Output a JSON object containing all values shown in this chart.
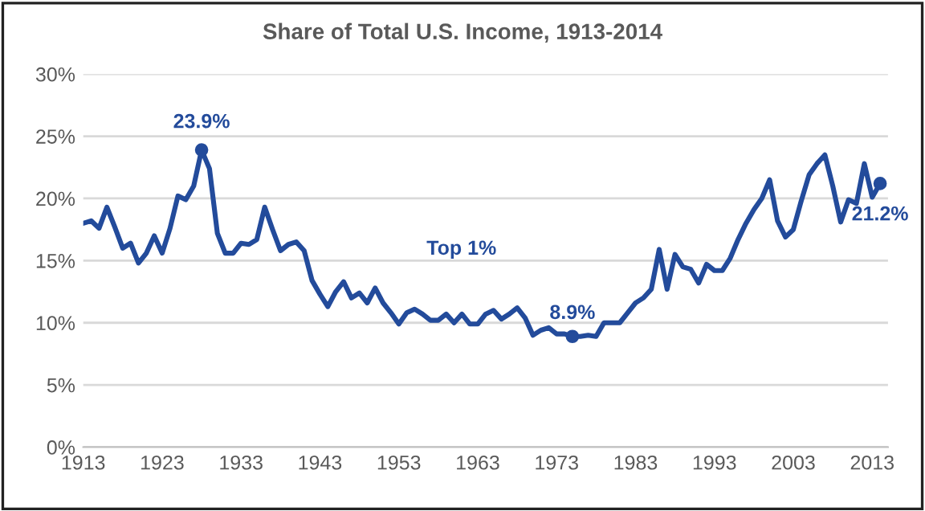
{
  "chart_data": {
    "type": "line",
    "title": "Share of Total U.S. Income, 1913-2014",
    "x": [
      1913,
      1914,
      1915,
      1916,
      1917,
      1918,
      1919,
      1920,
      1921,
      1922,
      1923,
      1924,
      1925,
      1926,
      1927,
      1928,
      1929,
      1930,
      1931,
      1932,
      1933,
      1934,
      1935,
      1936,
      1937,
      1938,
      1939,
      1940,
      1941,
      1942,
      1943,
      1944,
      1945,
      1946,
      1947,
      1948,
      1949,
      1950,
      1951,
      1952,
      1953,
      1954,
      1955,
      1956,
      1957,
      1958,
      1959,
      1960,
      1961,
      1962,
      1963,
      1964,
      1965,
      1966,
      1967,
      1968,
      1969,
      1970,
      1971,
      1972,
      1973,
      1974,
      1975,
      1976,
      1977,
      1978,
      1979,
      1980,
      1981,
      1982,
      1983,
      1984,
      1985,
      1986,
      1987,
      1988,
      1989,
      1990,
      1991,
      1992,
      1993,
      1994,
      1995,
      1996,
      1997,
      1998,
      1999,
      2000,
      2001,
      2002,
      2003,
      2004,
      2005,
      2006,
      2007,
      2008,
      2009,
      2010,
      2011,
      2012,
      2013,
      2014
    ],
    "series": [
      {
        "color": "#234b9b",
        "values": [
          18.0,
          18.2,
          17.6,
          19.3,
          17.7,
          16.0,
          16.4,
          14.8,
          15.6,
          17.0,
          15.6,
          17.6,
          20.2,
          19.9,
          21.0,
          23.9,
          22.4,
          17.2,
          15.6,
          15.6,
          16.4,
          16.3,
          16.7,
          19.3,
          17.5,
          15.8,
          16.3,
          16.5,
          15.8,
          13.4,
          12.3,
          11.3,
          12.5,
          13.3,
          12.0,
          12.4,
          11.6,
          12.8,
          11.6,
          10.8,
          9.9,
          10.8,
          11.1,
          10.7,
          10.2,
          10.2,
          10.7,
          10.0,
          10.7,
          9.9,
          9.9,
          10.7,
          11.0,
          10.3,
          10.7,
          11.2,
          10.4,
          9.0,
          9.4,
          9.6,
          9.1,
          9.1,
          8.9,
          8.9,
          9.0,
          8.9,
          10.0,
          10.0,
          10.0,
          10.8,
          11.6,
          12.0,
          12.7,
          15.9,
          12.7,
          15.5,
          14.5,
          14.3,
          13.2,
          14.7,
          14.2,
          14.2,
          15.2,
          16.7,
          18.0,
          19.1,
          20.0,
          21.5,
          18.2,
          16.9,
          17.5,
          19.8,
          21.9,
          22.8,
          23.5,
          21.0,
          18.1,
          19.9,
          19.6,
          22.8,
          20.1,
          21.2
        ]
      }
    ],
    "annotations": [
      {
        "text": "23.9%",
        "x": 1928,
        "y": 23.9
      },
      {
        "text": "8.9%",
        "x": 1975,
        "y": 8.9
      },
      {
        "text": "21.2%",
        "x": 2014,
        "y": 21.2
      },
      "Top 1%"
    ],
    "xlim": [
      1913,
      2015
    ],
    "xticks": [
      1913,
      1923,
      1933,
      1943,
      1953,
      1963,
      1973,
      1983,
      1993,
      2003,
      2013
    ],
    "ylim": [
      0,
      30
    ],
    "yticks": [
      {
        "value": 0,
        "label": "0%"
      },
      {
        "value": 5,
        "label": "5%"
      },
      {
        "value": 10,
        "label": "10%"
      },
      {
        "value": 15,
        "label": "15%"
      },
      {
        "value": 20,
        "label": "20%"
      },
      {
        "value": 25,
        "label": "25%"
      },
      {
        "value": 30,
        "label": "30%"
      }
    ],
    "grid": "y",
    "legend": false,
    "line_style": "solid"
  }
}
